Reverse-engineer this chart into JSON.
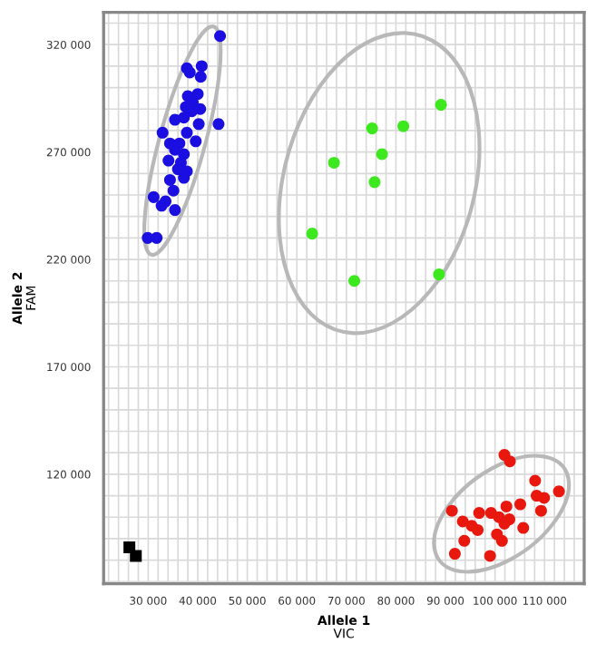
{
  "chart_data": {
    "type": "scatter",
    "xlabel": "Allele 1\nVIC",
    "ylabel": "Allele 2\nFAM",
    "xlim": [
      21000,
      118000
    ],
    "ylim": [
      69000,
      335000
    ],
    "xticks": [
      {
        "value": 30000,
        "label": "30 000"
      },
      {
        "value": 40000,
        "label": "40 000"
      },
      {
        "value": 50000,
        "label": "50 000"
      },
      {
        "value": 60000,
        "label": "60 000"
      },
      {
        "value": 70000,
        "label": "70 000"
      },
      {
        "value": 80000,
        "label": "80 000"
      },
      {
        "value": 90000,
        "label": "90 000"
      },
      {
        "value": 100000,
        "label": "100 000"
      },
      {
        "value": 110000,
        "label": "110 000"
      }
    ],
    "yticks": [
      {
        "value": 120000,
        "label": "120 000"
      },
      {
        "value": 170000,
        "label": "170 000"
      },
      {
        "value": 220000,
        "label": "220 000"
      },
      {
        "value": 270000,
        "label": "270 000"
      },
      {
        "value": 320000,
        "label": "320 000"
      }
    ],
    "grid": true,
    "legend": false,
    "marker": "circle",
    "series": [
      {
        "color": "#1a0fe0",
        "x": [
          44500,
          37800,
          40800,
          38400,
          40600,
          40000,
          38000,
          39000,
          37600,
          40500,
          38800,
          35400,
          37200,
          40200,
          44200,
          32900,
          37800,
          34400,
          36300,
          39600,
          35400,
          37200,
          34100,
          36600,
          37800,
          36000,
          34400,
          37200,
          35100,
          31100,
          32700,
          33500,
          35400,
          29900,
          31700
        ],
        "values": [
          324000,
          309000,
          310000,
          307000,
          305000,
          297000,
          296000,
          293000,
          291000,
          290000,
          289000,
          285000,
          286000,
          283000,
          283000,
          279000,
          279000,
          274000,
          274000,
          275000,
          271000,
          269000,
          266000,
          265000,
          261000,
          262000,
          257000,
          258000,
          252000,
          249000,
          245000,
          247000,
          243000,
          230000,
          230000
        ]
      },
      {
        "color": "#3ee81e",
        "x": [
          89100,
          75200,
          81500,
          77200,
          67500,
          75700,
          63100,
          71600,
          88700
        ],
        "values": [
          292000,
          281000,
          282000,
          269000,
          265000,
          256000,
          232000,
          210000,
          213000
        ]
      },
      {
        "color": "#e8180f",
        "x": [
          101900,
          103000,
          108100,
          112900,
          108400,
          109900,
          105100,
          102300,
          109300,
          91300,
          96800,
          99200,
          100800,
          93500,
          102900,
          95300,
          96500,
          101900,
          105700,
          100400,
          93800,
          101400,
          91900,
          99000
        ],
        "values": [
          129000,
          126000,
          117000,
          112000,
          110000,
          109000,
          106000,
          105000,
          103000,
          103000,
          102000,
          102000,
          100000,
          98000,
          99000,
          96000,
          94000,
          97000,
          95000,
          92000,
          89000,
          89000,
          83000,
          82000
        ]
      },
      {
        "color": "#000000",
        "marker": "square",
        "x": [
          26200,
          27500
        ],
        "values": [
          86000,
          82000
        ]
      }
    ]
  }
}
